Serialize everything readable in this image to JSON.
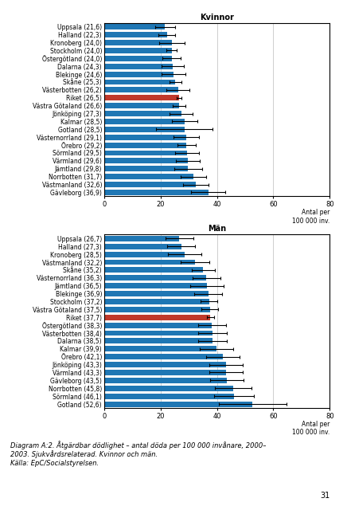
{
  "chart_data": [
    {
      "type": "bar",
      "orientation": "horizontal",
      "title": "Kvinnor",
      "categories": [
        "Uppsala (21,6)",
        "Halland (22,3)",
        "Kronoberg (24,0)",
        "Stockholm (24,0)",
        "Östergötland (24,0)",
        "Dalarna (24,3)",
        "Blekinge (24,6)",
        "Skåne (25,3)",
        "Västerbotten (26,2)",
        "Riket (26,5)",
        "Västra Götaland (26,6)",
        "Jönköping (27,3)",
        "Kalmar (28,5)",
        "Gotland (28,5)",
        "Västernorrland (29,1)",
        "Örebro (29,2)",
        "Sörmland (29,5)",
        "Värmland (29,6)",
        "Jämtland (29,8)",
        "Norrbotten (31,7)",
        "Västmanland (32,6)",
        "Gävleborg (36,9)"
      ],
      "values": [
        21.6,
        22.3,
        24.0,
        24.0,
        24.0,
        24.3,
        24.6,
        25.3,
        26.2,
        26.5,
        26.6,
        27.3,
        28.5,
        28.5,
        29.1,
        29.2,
        29.5,
        29.6,
        29.8,
        31.7,
        32.6,
        36.9
      ],
      "errors": [
        3.5,
        3.0,
        4.5,
        1.8,
        3.2,
        4.0,
        4.2,
        2.2,
        4.0,
        0.8,
        2.2,
        4.0,
        4.5,
        10.0,
        4.5,
        3.2,
        4.2,
        4.2,
        5.0,
        4.5,
        4.5,
        6.0
      ],
      "colors": [
        "#1f77b4",
        "#1f77b4",
        "#1f77b4",
        "#1f77b4",
        "#1f77b4",
        "#1f77b4",
        "#1f77b4",
        "#1f77b4",
        "#1f77b4",
        "#C0392B",
        "#1f77b4",
        "#1f77b4",
        "#1f77b4",
        "#1f77b4",
        "#1f77b4",
        "#1f77b4",
        "#1f77b4",
        "#1f77b4",
        "#1f77b4",
        "#1f77b4",
        "#1f77b4",
        "#1f77b4"
      ],
      "xlabel": "Antal per\n100 000 inv.",
      "xlim": [
        0,
        80
      ],
      "xticks": [
        0,
        20,
        40,
        60,
        80
      ],
      "grid": true
    },
    {
      "type": "bar",
      "orientation": "horizontal",
      "title": "Män",
      "categories": [
        "Uppsala (26,7)",
        "Halland (27,3)",
        "Kronoberg (28,5)",
        "Västmanland (32,2)",
        "Skåne (35,2)",
        "Västernorrland (36,3)",
        "Jämtland (36,5)",
        "Blekinge (36,9)",
        "Stockholm (37,2)",
        "Västra Götaland (37,5)",
        "Riket (37,7)",
        "Östergötland (38,3)",
        "Västerbotten (38,4)",
        "Dalarna (38,5)",
        "Kalmar (39,9)",
        "Örebro (42,1)",
        "Jönköping (43,3)",
        "Värmland (43,3)",
        "Gävleborg (43,5)",
        "Norrbotten (45,8)",
        "Sörmland (46,1)",
        "Gotland (52,6)"
      ],
      "values": [
        26.7,
        27.3,
        28.5,
        32.2,
        35.2,
        36.3,
        36.5,
        36.9,
        37.2,
        37.5,
        37.7,
        38.3,
        38.4,
        38.5,
        39.9,
        42.1,
        43.3,
        43.3,
        43.5,
        45.8,
        46.1,
        52.6
      ],
      "errors": [
        5.0,
        5.0,
        6.0,
        5.0,
        4.0,
        5.0,
        6.0,
        5.0,
        3.0,
        3.0,
        1.2,
        5.0,
        5.0,
        5.0,
        6.0,
        6.0,
        6.0,
        6.0,
        6.0,
        6.5,
        7.0,
        12.0
      ],
      "colors": [
        "#1f77b4",
        "#1f77b4",
        "#1f77b4",
        "#1f77b4",
        "#1f77b4",
        "#1f77b4",
        "#1f77b4",
        "#1f77b4",
        "#1f77b4",
        "#1f77b4",
        "#C0392B",
        "#1f77b4",
        "#1f77b4",
        "#1f77b4",
        "#1f77b4",
        "#1f77b4",
        "#1f77b4",
        "#1f77b4",
        "#1f77b4",
        "#1f77b4",
        "#1f77b4",
        "#1f77b4"
      ],
      "xlabel": "Antal per\n100 000 inv.",
      "xlim": [
        0,
        80
      ],
      "xticks": [
        0,
        20,
        40,
        60,
        80
      ],
      "grid": true
    }
  ],
  "caption": [
    "Diagram A:2. Åtgärdbar dödlighet – antal döda per 100 000 invånare, 2000–",
    "2003. Sjukvårdsrelaterad. Kvinnor och män.",
    "Källa: EpC/Socialstyrelsen."
  ],
  "page_number": "31"
}
